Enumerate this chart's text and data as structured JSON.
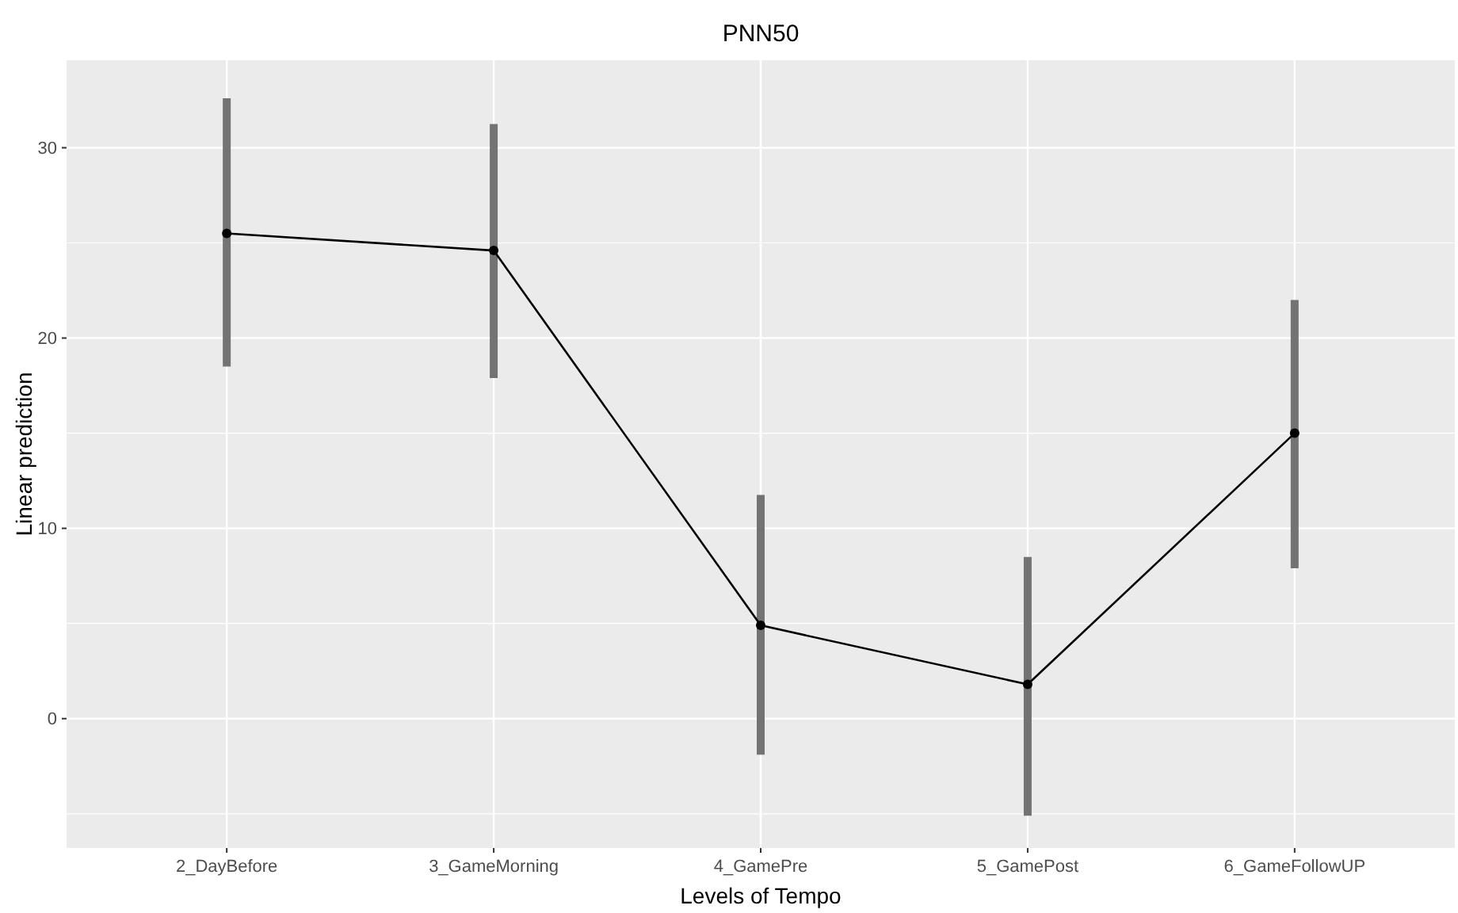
{
  "chart_data": {
    "type": "line",
    "title": "PNN50",
    "xlabel": "Levels of Tempo",
    "ylabel": "Linear prediction",
    "categories": [
      "2_DayBefore",
      "3_GameMorning",
      "4_GamePre",
      "5_GamePost",
      "6_GameFollowUP"
    ],
    "series": [
      {
        "color": "#000000",
        "values": [
          25.5,
          24.6,
          4.9,
          1.8,
          15
        ],
        "errors": [
          [
            18.5,
            32.6
          ],
          [
            17.9,
            31.25
          ],
          [
            -1.9,
            11.75
          ],
          [
            -5.1,
            8.5
          ],
          [
            7.9,
            22
          ]
        ]
      }
    ],
    "ylim": [
      -6.8,
      34.6
    ],
    "yticks": [
      0,
      10,
      20,
      30
    ],
    "grid": true,
    "marker": "circle",
    "line_style": "solid"
  }
}
